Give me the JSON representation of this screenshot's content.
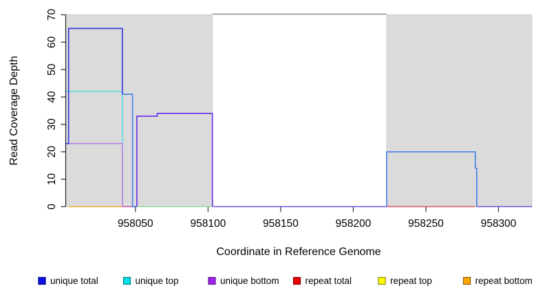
{
  "chart_data": {
    "type": "line",
    "title": "",
    "xlabel": "Coordinate in Reference Genome",
    "ylabel": "Read Coverage Depth",
    "x_range": [
      958002,
      958323
    ],
    "y_range": [
      0,
      70
    ],
    "x_ticks": [
      958050,
      958100,
      958150,
      958200,
      958250,
      958300
    ],
    "y_ticks": [
      0,
      10,
      20,
      30,
      40,
      50,
      60,
      70
    ],
    "grid": false,
    "legend_position": "bottom",
    "shaded_regions": [
      {
        "name": "shaded-region-left",
        "start": 958002,
        "end": 958103,
        "fill": "#DBDBDB",
        "edge": "#C6C6C6"
      },
      {
        "name": "shaded-region-right",
        "start": 958223,
        "end": 958323,
        "fill": "#DBDBDB",
        "edge": "#C6C6C6"
      }
    ],
    "top_boundary_line": {
      "y": 70,
      "start": 958103,
      "end": 958223,
      "color": "#8A8A8A"
    },
    "series_segments": [
      {
        "name": "repeat-bottom-zero-line",
        "color": "#FFA526",
        "width": 1.5,
        "points": [
          [
            958004,
            0
          ],
          [
            958041,
            0
          ]
        ]
      },
      {
        "name": "repeat-total-zero-line-left",
        "color": "#C2489E",
        "width": 1.5,
        "points": [
          [
            958041,
            0
          ],
          [
            958050,
            0
          ]
        ]
      },
      {
        "name": "zero-line-green-blend",
        "color": "#93D793",
        "width": 1.5,
        "points": [
          [
            958051,
            0
          ],
          [
            958103,
            0
          ]
        ]
      },
      {
        "name": "zero-line-violet-gap",
        "color": "#6550E8",
        "width": 1.5,
        "points": [
          [
            958103,
            0
          ],
          [
            958223,
            0
          ]
        ]
      },
      {
        "name": "repeat-total-zero-line-right",
        "color": "#E04F5F",
        "width": 1.5,
        "points": [
          [
            958223,
            0
          ],
          [
            958284,
            0
          ]
        ]
      },
      {
        "name": "zero-line-violet-right",
        "color": "#6550E8",
        "width": 1.5,
        "points": [
          [
            958285,
            0
          ],
          [
            958323,
            0
          ]
        ]
      },
      {
        "name": "unique-top-line",
        "color": "#5CDEE3",
        "width": 1.6,
        "points": [
          [
            958002,
            42
          ],
          [
            958041,
            42
          ],
          [
            958041,
            0
          ]
        ]
      },
      {
        "name": "unique-bottom-line",
        "color": "#BD7FE3",
        "width": 1.6,
        "points": [
          [
            958002,
            23
          ],
          [
            958041,
            23
          ],
          [
            958041,
            0
          ]
        ]
      },
      {
        "name": "unique-total-left-line",
        "color": "#3939E3",
        "width": 1.7,
        "points": [
          [
            958002,
            23
          ],
          [
            958004,
            23
          ],
          [
            958004,
            65
          ],
          [
            958041,
            65
          ],
          [
            958041,
            41
          ]
        ]
      },
      {
        "name": "unique-total-left-tail-line",
        "color": "#4A80E8",
        "width": 1.7,
        "points": [
          [
            958041,
            41
          ],
          [
            958048,
            41
          ],
          [
            958048,
            0
          ],
          [
            958051,
            0
          ]
        ]
      },
      {
        "name": "unique-mid-violet-line",
        "color": "#6937E8",
        "width": 1.7,
        "points": [
          [
            958051,
            0
          ],
          [
            958051,
            33
          ],
          [
            958065,
            33
          ],
          [
            958065,
            34
          ],
          [
            958103,
            34
          ],
          [
            958103,
            0
          ]
        ]
      },
      {
        "name": "unique-total-right-line",
        "color": "#4A80E8",
        "width": 1.7,
        "points": [
          [
            958223,
            0
          ],
          [
            958223,
            20
          ],
          [
            958284,
            20
          ],
          [
            958284,
            14
          ],
          [
            958285,
            14
          ],
          [
            958285,
            0
          ]
        ]
      }
    ],
    "legend": [
      {
        "label": "unique total",
        "fill": "#0F0FE8",
        "border": "#00008B"
      },
      {
        "label": "unique top",
        "fill": "#00E0E8",
        "border": "#007A85"
      },
      {
        "label": "unique bottom",
        "fill": "#A020F0",
        "border": "#5A1A8B"
      },
      {
        "label": "repeat total",
        "fill": "#E80000",
        "border": "#8B0000"
      },
      {
        "label": "repeat top",
        "fill": "#FFFF00",
        "border": "#8B8B00"
      },
      {
        "label": "repeat bottom",
        "fill": "#FFA500",
        "border": "#8B5A00"
      }
    ]
  }
}
